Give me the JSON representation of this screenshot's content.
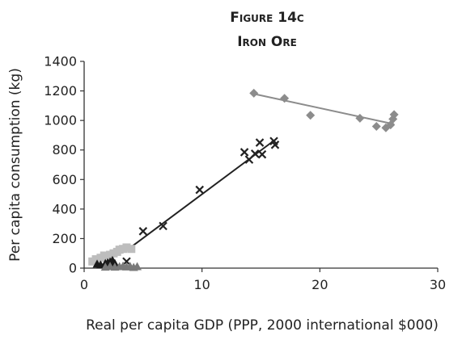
{
  "chart_data": {
    "type": "scatter",
    "title": "Figure 14c",
    "subtitle": "Iron Ore",
    "xlabel": "Real per capita GDP (PPP, 2000 international $000)",
    "ylabel": "Per capita consumption (kg)",
    "xlim": [
      0,
      30
    ],
    "ylim": [
      0,
      1400
    ],
    "xticks": [
      "0",
      "10",
      "20",
      "30"
    ],
    "yticks": [
      "0",
      "200",
      "400",
      "600",
      "800",
      "1000",
      "1200",
      "1400"
    ],
    "grid": false,
    "legend": "none",
    "series": [
      {
        "marker": "diamond",
        "color": "#8c8c8c",
        "points": [
          [
            14.4,
            1185
          ],
          [
            17.0,
            1150
          ],
          [
            19.2,
            1035
          ],
          [
            23.4,
            1015
          ],
          [
            24.8,
            960
          ],
          [
            25.6,
            950
          ],
          [
            26.0,
            970
          ],
          [
            26.2,
            1010
          ],
          [
            26.3,
            1040
          ]
        ],
        "trend": [
          [
            14.4,
            1180
          ],
          [
            26.3,
            975
          ]
        ]
      },
      {
        "marker": "cross",
        "color": "#222222",
        "points": [
          [
            3.6,
            45
          ],
          [
            5.0,
            250
          ],
          [
            6.7,
            285
          ],
          [
            9.8,
            530
          ],
          [
            13.6,
            785
          ],
          [
            14.0,
            735
          ],
          [
            14.5,
            775
          ],
          [
            14.9,
            850
          ],
          [
            15.1,
            770
          ],
          [
            16.2,
            835
          ],
          [
            16.1,
            860
          ]
        ],
        "trend": [
          [
            3.6,
            120
          ],
          [
            16.3,
            875
          ]
        ]
      },
      {
        "marker": "square",
        "color": "#bdbdbd",
        "points": [
          [
            0.7,
            45
          ],
          [
            1.0,
            60
          ],
          [
            1.4,
            70
          ],
          [
            1.7,
            85
          ],
          [
            2.2,
            90
          ],
          [
            2.5,
            100
          ],
          [
            2.8,
            110
          ],
          [
            3.0,
            125
          ],
          [
            3.3,
            130
          ],
          [
            3.6,
            140
          ],
          [
            4.0,
            130
          ]
        ]
      },
      {
        "marker": "triangle",
        "color": "#1a1a1a",
        "points": [
          [
            1.1,
            25
          ],
          [
            1.4,
            20
          ],
          [
            1.8,
            30
          ],
          [
            2.0,
            35
          ],
          [
            2.2,
            40
          ],
          [
            2.4,
            50
          ],
          [
            2.6,
            30
          ]
        ]
      },
      {
        "marker": "triangle",
        "color": "#7a7a7a",
        "points": [
          [
            1.8,
            5
          ],
          [
            2.2,
            10
          ],
          [
            2.6,
            5
          ],
          [
            3.0,
            8
          ],
          [
            3.3,
            12
          ],
          [
            3.6,
            6
          ],
          [
            3.9,
            10
          ],
          [
            4.2,
            3
          ],
          [
            4.5,
            8
          ]
        ]
      }
    ]
  }
}
